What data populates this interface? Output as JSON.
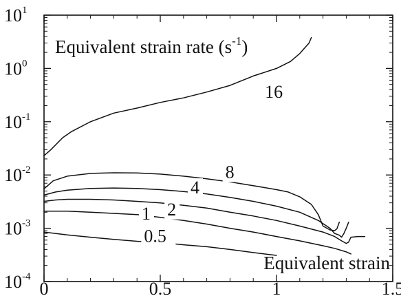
{
  "chart_data": {
    "type": "line",
    "x_scale": "linear",
    "y_scale": "log",
    "xlim": [
      0,
      1.5
    ],
    "ylim": [
      0.0001,
      10
    ],
    "x_ticks": [
      {
        "value": 0,
        "label": "0"
      },
      {
        "value": 0.5,
        "label": "0.5"
      },
      {
        "value": 1,
        "label": "1"
      },
      {
        "value": 1.5,
        "label": "1.5"
      }
    ],
    "y_ticks": [
      {
        "value": 0.0001,
        "base": "10",
        "exp": "-4"
      },
      {
        "value": 0.001,
        "base": "10",
        "exp": "-3"
      },
      {
        "value": 0.01,
        "base": "10",
        "exp": "-2"
      },
      {
        "value": 0.1,
        "base": "10",
        "exp": "-1"
      },
      {
        "value": 1,
        "base": "10",
        "exp": "0"
      },
      {
        "value": 10,
        "base": "10",
        "exp": "1"
      }
    ],
    "ylabel_text": "Equivalent strain rate (s",
    "ylabel_exp": "-1",
    "ylabel_close": ")",
    "xlabel": "Equivalent strain",
    "series": [
      {
        "name": "16",
        "label_at": [
          0.95,
          0.28
        ],
        "points": [
          [
            0,
            0.023
          ],
          [
            0.03,
            0.03
          ],
          [
            0.08,
            0.05
          ],
          [
            0.12,
            0.066
          ],
          [
            0.2,
            0.1
          ],
          [
            0.3,
            0.145
          ],
          [
            0.4,
            0.18
          ],
          [
            0.5,
            0.23
          ],
          [
            0.6,
            0.28
          ],
          [
            0.7,
            0.36
          ],
          [
            0.8,
            0.48
          ],
          [
            0.9,
            0.72
          ],
          [
            1.0,
            1.0
          ],
          [
            1.06,
            1.35
          ],
          [
            1.1,
            1.9
          ],
          [
            1.14,
            3.0
          ],
          [
            1.15,
            3.8
          ]
        ]
      },
      {
        "name": "8",
        "label_at": [
          0.78,
          0.0088
        ],
        "points": [
          [
            0,
            0.0055
          ],
          [
            0.04,
            0.0078
          ],
          [
            0.1,
            0.0095
          ],
          [
            0.2,
            0.0107
          ],
          [
            0.3,
            0.011
          ],
          [
            0.4,
            0.0109
          ],
          [
            0.5,
            0.0104
          ],
          [
            0.6,
            0.0095
          ],
          [
            0.7,
            0.0085
          ],
          [
            0.8,
            0.0074
          ],
          [
            0.9,
            0.0063
          ],
          [
            1.0,
            0.0053
          ],
          [
            1.05,
            0.0048
          ],
          [
            1.1,
            0.0039
          ],
          [
            1.15,
            0.0028
          ],
          [
            1.18,
            0.0018
          ],
          [
            1.2,
            0.0011
          ],
          [
            1.23,
            0.00093
          ],
          [
            1.25,
            0.0009
          ],
          [
            1.26,
            0.00098
          ],
          [
            1.27,
            0.0013
          ]
        ]
      },
      {
        "name": "4",
        "label_at": [
          0.63,
          0.0045
        ],
        "points": [
          [
            0,
            0.0042
          ],
          [
            0.05,
            0.0048
          ],
          [
            0.1,
            0.0052
          ],
          [
            0.2,
            0.0056
          ],
          [
            0.3,
            0.0057
          ],
          [
            0.4,
            0.0056
          ],
          [
            0.5,
            0.0053
          ],
          [
            0.6,
            0.0049
          ],
          [
            0.7,
            0.0044
          ],
          [
            0.8,
            0.0038
          ],
          [
            0.9,
            0.0032
          ],
          [
            1.0,
            0.0026
          ],
          [
            1.1,
            0.002
          ],
          [
            1.18,
            0.0014
          ],
          [
            1.23,
            0.001
          ],
          [
            1.25,
            0.0008
          ],
          [
            1.27,
            0.00074
          ],
          [
            1.28,
            0.00068
          ],
          [
            1.29,
            0.0008
          ],
          [
            1.3,
            0.001
          ],
          [
            1.31,
            0.0013
          ]
        ]
      },
      {
        "name": "2",
        "label_at": [
          0.53,
          0.00175
        ],
        "points": [
          [
            0,
            0.0032
          ],
          [
            0.05,
            0.0034
          ],
          [
            0.1,
            0.0035
          ],
          [
            0.2,
            0.0035
          ],
          [
            0.3,
            0.0034
          ],
          [
            0.4,
            0.0032
          ],
          [
            0.5,
            0.003
          ],
          [
            0.6,
            0.0027
          ],
          [
            0.7,
            0.0024
          ],
          [
            0.8,
            0.002
          ],
          [
            0.9,
            0.0017
          ],
          [
            1.0,
            0.0014
          ],
          [
            1.1,
            0.0011
          ],
          [
            1.2,
            0.00085
          ],
          [
            1.25,
            0.0007
          ],
          [
            1.28,
            0.00058
          ],
          [
            1.3,
            0.00052
          ],
          [
            1.31,
            0.00055
          ],
          [
            1.32,
            0.00068
          ],
          [
            1.35,
            0.0007
          ],
          [
            1.38,
            0.0007
          ]
        ]
      },
      {
        "name": "1",
        "label_at": [
          0.42,
          0.00145
        ],
        "points": [
          [
            0,
            0.0021
          ],
          [
            0.1,
            0.0021
          ],
          [
            0.2,
            0.002
          ],
          [
            0.3,
            0.0019
          ],
          [
            0.4,
            0.0018
          ],
          [
            0.5,
            0.0016
          ],
          [
            0.6,
            0.0014
          ],
          [
            0.7,
            0.0012
          ],
          [
            0.8,
            0.001
          ],
          [
            0.9,
            0.00085
          ],
          [
            1.0,
            0.0007
          ],
          [
            1.1,
            0.00058
          ],
          [
            1.2,
            0.00047
          ],
          [
            1.25,
            0.00042
          ],
          [
            1.3,
            0.00036
          ],
          [
            1.32,
            0.00033
          ]
        ]
      },
      {
        "name": "0.5",
        "label_at": [
          0.43,
          0.00055
        ],
        "points": [
          [
            0,
            0.00085
          ],
          [
            0.1,
            0.00075
          ],
          [
            0.2,
            0.00068
          ],
          [
            0.3,
            0.00062
          ],
          [
            0.4,
            0.00057
          ],
          [
            0.5,
            0.00054
          ],
          [
            0.6,
            0.00049
          ],
          [
            0.7,
            0.00045
          ],
          [
            0.8,
            0.0004
          ],
          [
            0.9,
            0.00035
          ],
          [
            1.0,
            0.00031
          ]
        ]
      }
    ]
  }
}
